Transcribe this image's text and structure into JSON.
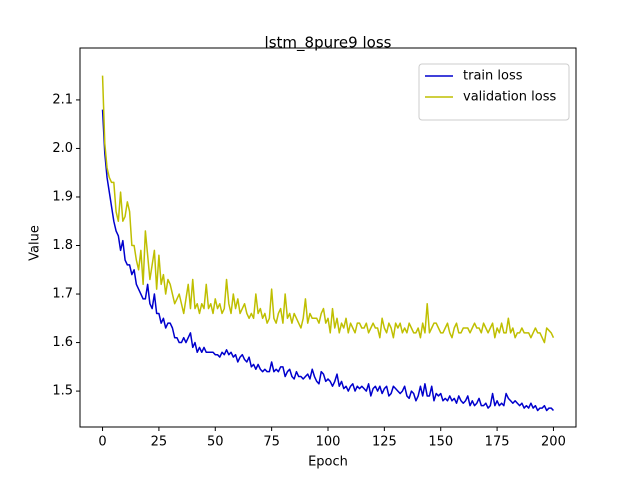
{
  "chart_data": {
    "type": "line",
    "title": "lstm_8pure9 loss",
    "x_label": "Epoch",
    "y_label": "Value",
    "x": [
      0,
      1,
      2,
      3,
      4,
      5,
      6,
      7,
      8,
      9,
      10,
      11,
      12,
      13,
      14,
      15,
      16,
      17,
      18,
      19,
      20,
      21,
      22,
      23,
      24,
      25,
      26,
      27,
      28,
      29,
      30,
      31,
      32,
      33,
      34,
      35,
      36,
      37,
      38,
      39,
      40,
      41,
      42,
      43,
      44,
      45,
      46,
      47,
      48,
      49,
      50,
      51,
      52,
      53,
      54,
      55,
      56,
      57,
      58,
      59,
      60,
      61,
      62,
      63,
      64,
      65,
      66,
      67,
      68,
      69,
      70,
      71,
      72,
      73,
      74,
      75,
      76,
      77,
      78,
      79,
      80,
      81,
      82,
      83,
      84,
      85,
      86,
      87,
      88,
      89,
      90,
      91,
      92,
      93,
      94,
      95,
      96,
      97,
      98,
      99,
      100,
      101,
      102,
      103,
      104,
      105,
      106,
      107,
      108,
      109,
      110,
      111,
      112,
      113,
      114,
      115,
      116,
      117,
      118,
      119,
      120,
      121,
      122,
      123,
      124,
      125,
      126,
      127,
      128,
      129,
      130,
      131,
      132,
      133,
      134,
      135,
      136,
      137,
      138,
      139,
      140,
      141,
      142,
      143,
      144,
      145,
      146,
      147,
      148,
      149,
      150,
      151,
      152,
      153,
      154,
      155,
      156,
      157,
      158,
      159,
      160,
      161,
      162,
      163,
      164,
      165,
      166,
      167,
      168,
      169,
      170,
      171,
      172,
      173,
      174,
      175,
      176,
      177,
      178,
      179,
      180,
      181,
      182,
      183,
      184,
      185,
      186,
      187,
      188,
      189,
      190,
      191,
      192,
      193,
      194,
      195,
      196,
      197,
      198,
      199,
      200
    ],
    "series": [
      {
        "name": "train loss",
        "color": "#0000cd",
        "values": [
          2.08,
          1.99,
          1.94,
          1.91,
          1.88,
          1.85,
          1.83,
          1.82,
          1.79,
          1.81,
          1.77,
          1.76,
          1.76,
          1.74,
          1.75,
          1.72,
          1.71,
          1.7,
          1.69,
          1.69,
          1.72,
          1.68,
          1.67,
          1.7,
          1.66,
          1.66,
          1.64,
          1.65,
          1.63,
          1.64,
          1.64,
          1.63,
          1.61,
          1.61,
          1.6,
          1.6,
          1.61,
          1.6,
          1.61,
          1.62,
          1.59,
          1.6,
          1.58,
          1.59,
          1.58,
          1.59,
          1.58,
          1.58,
          1.58,
          1.58,
          1.575,
          1.575,
          1.57,
          1.58,
          1.575,
          1.585,
          1.575,
          1.58,
          1.57,
          1.575,
          1.56,
          1.57,
          1.575,
          1.565,
          1.56,
          1.57,
          1.55,
          1.555,
          1.545,
          1.555,
          1.545,
          1.54,
          1.545,
          1.54,
          1.54,
          1.56,
          1.54,
          1.545,
          1.54,
          1.55,
          1.55,
          1.53,
          1.54,
          1.545,
          1.53,
          1.525,
          1.54,
          1.53,
          1.53,
          1.525,
          1.53,
          1.535,
          1.525,
          1.545,
          1.53,
          1.52,
          1.515,
          1.54,
          1.535,
          1.52,
          1.525,
          1.52,
          1.51,
          1.52,
          1.535,
          1.51,
          1.52,
          1.505,
          1.51,
          1.5,
          1.51,
          1.515,
          1.5,
          1.51,
          1.505,
          1.51,
          1.505,
          1.5,
          1.515,
          1.49,
          1.505,
          1.51,
          1.5,
          1.51,
          1.495,
          1.505,
          1.51,
          1.49,
          1.495,
          1.51,
          1.505,
          1.5,
          1.495,
          1.5,
          1.51,
          1.49,
          1.485,
          1.5,
          1.495,
          1.48,
          1.49,
          1.51,
          1.49,
          1.515,
          1.49,
          1.49,
          1.51,
          1.48,
          1.495,
          1.49,
          1.495,
          1.48,
          1.485,
          1.48,
          1.49,
          1.48,
          1.485,
          1.475,
          1.49,
          1.48,
          1.475,
          1.48,
          1.49,
          1.47,
          1.48,
          1.47,
          1.475,
          1.485,
          1.47,
          1.47,
          1.475,
          1.465,
          1.47,
          1.495,
          1.47,
          1.48,
          1.47,
          1.475,
          1.47,
          1.495,
          1.485,
          1.48,
          1.475,
          1.48,
          1.475,
          1.47,
          1.475,
          1.465,
          1.47,
          1.465,
          1.475,
          1.465,
          1.47,
          1.46,
          1.465,
          1.465,
          1.47,
          1.46,
          1.465,
          1.465,
          1.46
        ]
      },
      {
        "name": "validation loss",
        "color": "#bfbf00",
        "values": [
          2.15,
          2.01,
          1.96,
          1.94,
          1.93,
          1.93,
          1.87,
          1.85,
          1.91,
          1.85,
          1.86,
          1.89,
          1.87,
          1.8,
          1.8,
          1.77,
          1.75,
          1.79,
          1.72,
          1.83,
          1.78,
          1.73,
          1.76,
          1.79,
          1.71,
          1.78,
          1.72,
          1.74,
          1.7,
          1.73,
          1.72,
          1.7,
          1.68,
          1.69,
          1.7,
          1.68,
          1.66,
          1.69,
          1.72,
          1.67,
          1.73,
          1.67,
          1.68,
          1.66,
          1.68,
          1.67,
          1.72,
          1.67,
          1.68,
          1.66,
          1.69,
          1.67,
          1.68,
          1.66,
          1.67,
          1.73,
          1.68,
          1.66,
          1.7,
          1.67,
          1.69,
          1.66,
          1.67,
          1.68,
          1.66,
          1.65,
          1.66,
          1.65,
          1.7,
          1.66,
          1.67,
          1.65,
          1.66,
          1.64,
          1.65,
          1.71,
          1.65,
          1.64,
          1.66,
          1.67,
          1.64,
          1.7,
          1.65,
          1.66,
          1.64,
          1.66,
          1.65,
          1.64,
          1.63,
          1.65,
          1.69,
          1.64,
          1.66,
          1.65,
          1.65,
          1.65,
          1.64,
          1.66,
          1.67,
          1.64,
          1.65,
          1.62,
          1.67,
          1.63,
          1.65,
          1.62,
          1.64,
          1.63,
          1.65,
          1.62,
          1.64,
          1.63,
          1.62,
          1.64,
          1.64,
          1.63,
          1.63,
          1.64,
          1.62,
          1.63,
          1.64,
          1.63,
          1.63,
          1.61,
          1.65,
          1.63,
          1.62,
          1.64,
          1.63,
          1.61,
          1.64,
          1.63,
          1.64,
          1.62,
          1.63,
          1.62,
          1.64,
          1.63,
          1.62,
          1.62,
          1.63,
          1.61,
          1.64,
          1.62,
          1.68,
          1.62,
          1.63,
          1.64,
          1.64,
          1.63,
          1.62,
          1.62,
          1.63,
          1.64,
          1.62,
          1.61,
          1.63,
          1.64,
          1.62,
          1.62,
          1.63,
          1.63,
          1.63,
          1.62,
          1.63,
          1.64,
          1.63,
          1.63,
          1.62,
          1.64,
          1.63,
          1.62,
          1.63,
          1.64,
          1.61,
          1.63,
          1.62,
          1.64,
          1.62,
          1.62,
          1.65,
          1.62,
          1.63,
          1.61,
          1.62,
          1.62,
          1.63,
          1.62,
          1.62,
          1.62,
          1.61,
          1.62,
          1.63,
          1.62,
          1.62,
          1.61,
          1.6,
          1.63,
          1.625,
          1.62,
          1.61
        ]
      }
    ],
    "xlim": [
      -10,
      210
    ],
    "ylim": [
      1.426,
      2.207
    ],
    "xticks": [
      0,
      25,
      50,
      75,
      100,
      125,
      150,
      175,
      200
    ],
    "yticks": [
      1.5,
      1.6,
      1.7,
      1.8,
      1.9,
      {
        "value": 2,
        "label": "2.0"
      },
      2.1
    ],
    "legend": "upper right",
    "grid": false
  }
}
